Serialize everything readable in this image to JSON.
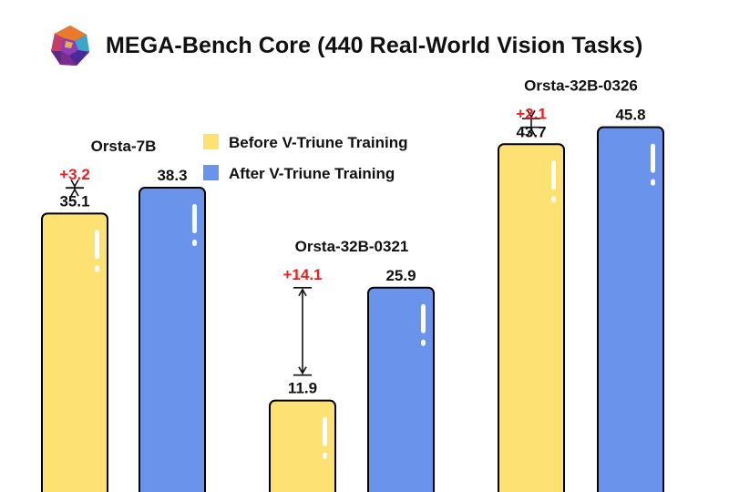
{
  "header": {
    "title": "MEGA-Bench Core (440 Real-World Vision Tasks)",
    "logo_icon": "crystal-gem-icon"
  },
  "chart_data": {
    "type": "bar",
    "title": "MEGA-Bench Core (440 Real-World Vision Tasks)",
    "xlabel": "",
    "ylabel": "",
    "categories": [
      "Orsta-7B",
      "Orsta-32B-0321",
      "Orsta-32B-0326"
    ],
    "series": [
      {
        "name": "Before V-Triune Training",
        "color": "#FDE172",
        "values": [
          35.1,
          11.9,
          43.7
        ]
      },
      {
        "name": "After V-Triune Training",
        "color": "#6A93EC",
        "values": [
          38.3,
          25.9,
          45.8
        ]
      }
    ],
    "gains": [
      "+3.2",
      "+14.1",
      "+2.1"
    ],
    "gain_color": "#E82020",
    "value_labels": [
      [
        "35.1",
        "38.3"
      ],
      [
        "11.9",
        "25.9"
      ],
      [
        "43.7",
        "45.8"
      ]
    ],
    "legend": {
      "position": "top-center"
    },
    "grid": false,
    "yaxis_visible": false
  }
}
